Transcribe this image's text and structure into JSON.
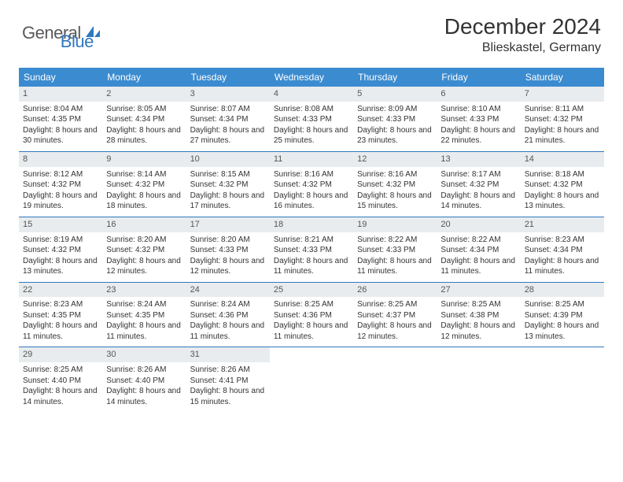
{
  "logo": {
    "text_general": "General",
    "text_blue": "Blue",
    "color_general": "#5a5a5a",
    "color_blue": "#2f78bf",
    "icon_color": "#2f78bf"
  },
  "title": "December 2024",
  "location": "Blieskastel, Germany",
  "colors": {
    "header_bg": "#3b8bd0",
    "header_text": "#ffffff",
    "daynum_bg": "#e9ecee",
    "row_border": "#2f78bf",
    "body_text": "#333333",
    "background": "#ffffff"
  },
  "fonts": {
    "title_size": 28,
    "location_size": 16,
    "header_size": 12,
    "daynum_size": 11,
    "body_size": 10
  },
  "day_headers": [
    "Sunday",
    "Monday",
    "Tuesday",
    "Wednesday",
    "Thursday",
    "Friday",
    "Saturday"
  ],
  "weeks": [
    [
      {
        "num": "1",
        "sunrise": "Sunrise: 8:04 AM",
        "sunset": "Sunset: 4:35 PM",
        "daylight": "Daylight: 8 hours and 30 minutes."
      },
      {
        "num": "2",
        "sunrise": "Sunrise: 8:05 AM",
        "sunset": "Sunset: 4:34 PM",
        "daylight": "Daylight: 8 hours and 28 minutes."
      },
      {
        "num": "3",
        "sunrise": "Sunrise: 8:07 AM",
        "sunset": "Sunset: 4:34 PM",
        "daylight": "Daylight: 8 hours and 27 minutes."
      },
      {
        "num": "4",
        "sunrise": "Sunrise: 8:08 AM",
        "sunset": "Sunset: 4:33 PM",
        "daylight": "Daylight: 8 hours and 25 minutes."
      },
      {
        "num": "5",
        "sunrise": "Sunrise: 8:09 AM",
        "sunset": "Sunset: 4:33 PM",
        "daylight": "Daylight: 8 hours and 23 minutes."
      },
      {
        "num": "6",
        "sunrise": "Sunrise: 8:10 AM",
        "sunset": "Sunset: 4:33 PM",
        "daylight": "Daylight: 8 hours and 22 minutes."
      },
      {
        "num": "7",
        "sunrise": "Sunrise: 8:11 AM",
        "sunset": "Sunset: 4:32 PM",
        "daylight": "Daylight: 8 hours and 21 minutes."
      }
    ],
    [
      {
        "num": "8",
        "sunrise": "Sunrise: 8:12 AM",
        "sunset": "Sunset: 4:32 PM",
        "daylight": "Daylight: 8 hours and 19 minutes."
      },
      {
        "num": "9",
        "sunrise": "Sunrise: 8:14 AM",
        "sunset": "Sunset: 4:32 PM",
        "daylight": "Daylight: 8 hours and 18 minutes."
      },
      {
        "num": "10",
        "sunrise": "Sunrise: 8:15 AM",
        "sunset": "Sunset: 4:32 PM",
        "daylight": "Daylight: 8 hours and 17 minutes."
      },
      {
        "num": "11",
        "sunrise": "Sunrise: 8:16 AM",
        "sunset": "Sunset: 4:32 PM",
        "daylight": "Daylight: 8 hours and 16 minutes."
      },
      {
        "num": "12",
        "sunrise": "Sunrise: 8:16 AM",
        "sunset": "Sunset: 4:32 PM",
        "daylight": "Daylight: 8 hours and 15 minutes."
      },
      {
        "num": "13",
        "sunrise": "Sunrise: 8:17 AM",
        "sunset": "Sunset: 4:32 PM",
        "daylight": "Daylight: 8 hours and 14 minutes."
      },
      {
        "num": "14",
        "sunrise": "Sunrise: 8:18 AM",
        "sunset": "Sunset: 4:32 PM",
        "daylight": "Daylight: 8 hours and 13 minutes."
      }
    ],
    [
      {
        "num": "15",
        "sunrise": "Sunrise: 8:19 AM",
        "sunset": "Sunset: 4:32 PM",
        "daylight": "Daylight: 8 hours and 13 minutes."
      },
      {
        "num": "16",
        "sunrise": "Sunrise: 8:20 AM",
        "sunset": "Sunset: 4:32 PM",
        "daylight": "Daylight: 8 hours and 12 minutes."
      },
      {
        "num": "17",
        "sunrise": "Sunrise: 8:20 AM",
        "sunset": "Sunset: 4:33 PM",
        "daylight": "Daylight: 8 hours and 12 minutes."
      },
      {
        "num": "18",
        "sunrise": "Sunrise: 8:21 AM",
        "sunset": "Sunset: 4:33 PM",
        "daylight": "Daylight: 8 hours and 11 minutes."
      },
      {
        "num": "19",
        "sunrise": "Sunrise: 8:22 AM",
        "sunset": "Sunset: 4:33 PM",
        "daylight": "Daylight: 8 hours and 11 minutes."
      },
      {
        "num": "20",
        "sunrise": "Sunrise: 8:22 AM",
        "sunset": "Sunset: 4:34 PM",
        "daylight": "Daylight: 8 hours and 11 minutes."
      },
      {
        "num": "21",
        "sunrise": "Sunrise: 8:23 AM",
        "sunset": "Sunset: 4:34 PM",
        "daylight": "Daylight: 8 hours and 11 minutes."
      }
    ],
    [
      {
        "num": "22",
        "sunrise": "Sunrise: 8:23 AM",
        "sunset": "Sunset: 4:35 PM",
        "daylight": "Daylight: 8 hours and 11 minutes."
      },
      {
        "num": "23",
        "sunrise": "Sunrise: 8:24 AM",
        "sunset": "Sunset: 4:35 PM",
        "daylight": "Daylight: 8 hours and 11 minutes."
      },
      {
        "num": "24",
        "sunrise": "Sunrise: 8:24 AM",
        "sunset": "Sunset: 4:36 PM",
        "daylight": "Daylight: 8 hours and 11 minutes."
      },
      {
        "num": "25",
        "sunrise": "Sunrise: 8:25 AM",
        "sunset": "Sunset: 4:36 PM",
        "daylight": "Daylight: 8 hours and 11 minutes."
      },
      {
        "num": "26",
        "sunrise": "Sunrise: 8:25 AM",
        "sunset": "Sunset: 4:37 PM",
        "daylight": "Daylight: 8 hours and 12 minutes."
      },
      {
        "num": "27",
        "sunrise": "Sunrise: 8:25 AM",
        "sunset": "Sunset: 4:38 PM",
        "daylight": "Daylight: 8 hours and 12 minutes."
      },
      {
        "num": "28",
        "sunrise": "Sunrise: 8:25 AM",
        "sunset": "Sunset: 4:39 PM",
        "daylight": "Daylight: 8 hours and 13 minutes."
      }
    ],
    [
      {
        "num": "29",
        "sunrise": "Sunrise: 8:25 AM",
        "sunset": "Sunset: 4:40 PM",
        "daylight": "Daylight: 8 hours and 14 minutes."
      },
      {
        "num": "30",
        "sunrise": "Sunrise: 8:26 AM",
        "sunset": "Sunset: 4:40 PM",
        "daylight": "Daylight: 8 hours and 14 minutes."
      },
      {
        "num": "31",
        "sunrise": "Sunrise: 8:26 AM",
        "sunset": "Sunset: 4:41 PM",
        "daylight": "Daylight: 8 hours and 15 minutes."
      },
      null,
      null,
      null,
      null
    ]
  ]
}
